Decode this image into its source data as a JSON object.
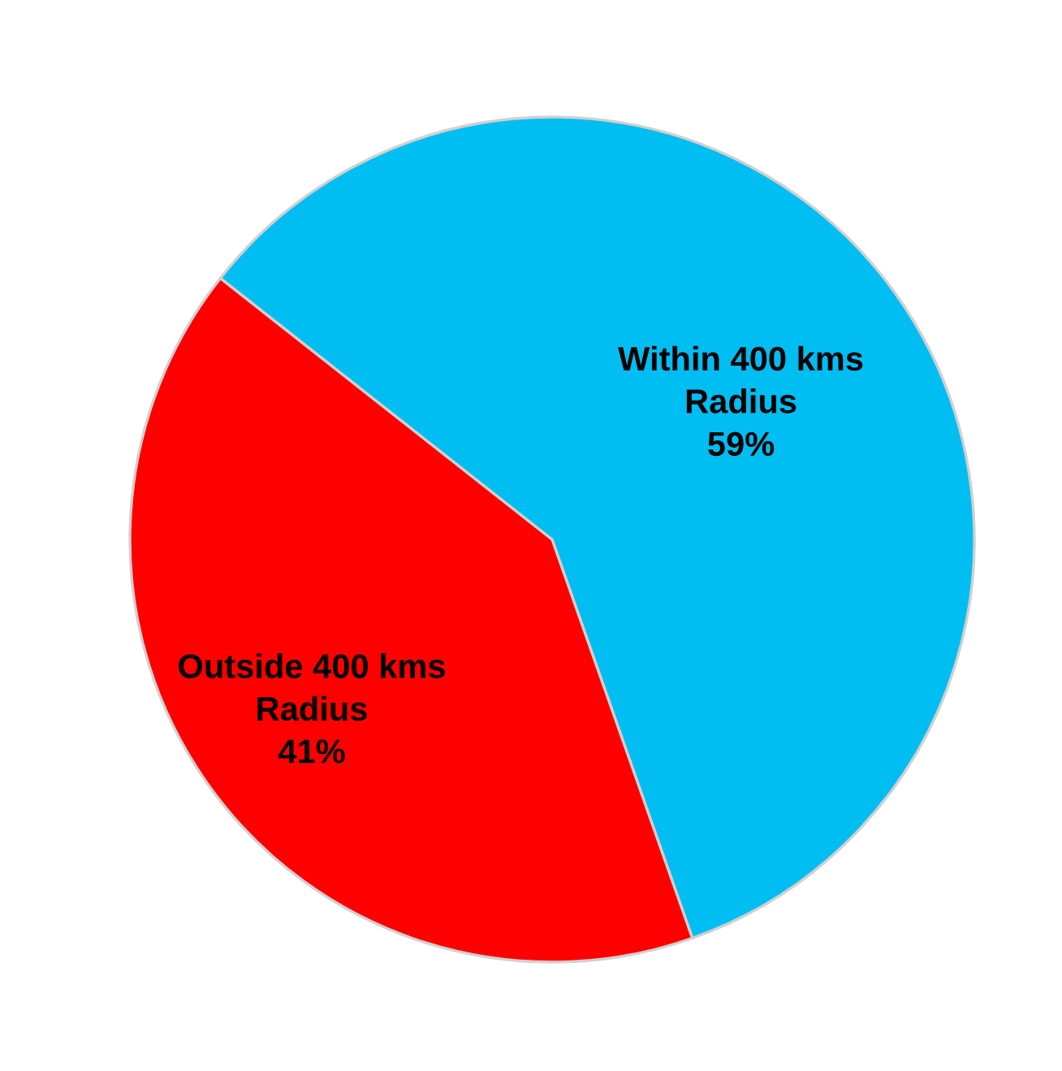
{
  "chart_data": {
    "type": "pie",
    "categories": [
      "Within 400 kms Radius",
      "Outside 400 kms Radius"
    ],
    "values": [
      59,
      41
    ],
    "value_labels": [
      "59%",
      "41%"
    ],
    "colors": [
      "#00bdf2",
      "#ff0000"
    ],
    "legend": false
  }
}
